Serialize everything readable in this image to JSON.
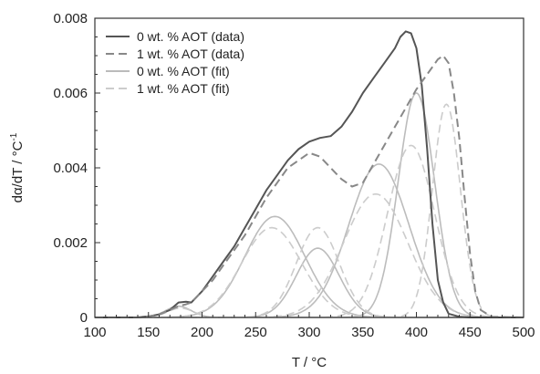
{
  "chart_data": {
    "type": "line",
    "xlabel": "T / °C",
    "ylabel_main": "dα/dT / °C",
    "ylabel_sup": "-1",
    "xlim": [
      100,
      500
    ],
    "ylim": [
      0,
      0.008
    ],
    "x_ticks": [
      100,
      150,
      200,
      250,
      300,
      350,
      400,
      450,
      500
    ],
    "x_tick_labels": [
      "100",
      "150",
      "200",
      "250",
      "300",
      "350",
      "400",
      "450",
      "500"
    ],
    "y_ticks": [
      0,
      0.002,
      0.004,
      0.006,
      0.008
    ],
    "y_tick_labels": [
      "0",
      "0.002",
      "0.004",
      "0.006",
      "0.008"
    ],
    "grid": false,
    "legend_position": "top-left",
    "legend": [
      {
        "label": "0 wt. % AOT (data)",
        "color": "#555555",
        "dash": "solid"
      },
      {
        "label": "1 wt. % AOT (data)",
        "color": "#888888",
        "dash": "dashed"
      },
      {
        "label": "0 wt. % AOT (fit)",
        "color": "#bbbbbb",
        "dash": "solid"
      },
      {
        "label": "1 wt. % AOT (fit)",
        "color": "#cccccc",
        "dash": "dashed"
      }
    ],
    "series": [
      {
        "name": "0 wt. % AOT (data)",
        "color": "#555555",
        "dash": "solid",
        "width": 2,
        "x": [
          100,
          140,
          150,
          160,
          170,
          178,
          185,
          190,
          200,
          210,
          220,
          230,
          240,
          250,
          260,
          270,
          280,
          290,
          300,
          310,
          320,
          330,
          340,
          350,
          360,
          370,
          380,
          385,
          390,
          395,
          400,
          405,
          410,
          415,
          420,
          425,
          430,
          440,
          450,
          500
        ],
        "y": [
          0,
          0,
          3e-05,
          8e-05,
          0.0002,
          0.0004,
          0.00042,
          0.0004,
          0.0007,
          0.0011,
          0.0015,
          0.0019,
          0.0024,
          0.0029,
          0.0034,
          0.0038,
          0.0042,
          0.0045,
          0.0047,
          0.0048,
          0.00485,
          0.0051,
          0.0055,
          0.006,
          0.0064,
          0.0068,
          0.0072,
          0.0075,
          0.00765,
          0.0076,
          0.0072,
          0.0062,
          0.0045,
          0.0025,
          0.001,
          0.0004,
          0.0001,
          2e-05,
          0,
          0
        ]
      },
      {
        "name": "1 wt. % AOT (data)",
        "color": "#888888",
        "dash": "dashed",
        "width": 2,
        "x": [
          100,
          140,
          150,
          160,
          170,
          178,
          185,
          190,
          200,
          210,
          220,
          230,
          240,
          250,
          260,
          270,
          280,
          290,
          300,
          310,
          320,
          330,
          340,
          350,
          360,
          370,
          380,
          390,
          400,
          410,
          420,
          425,
          430,
          435,
          440,
          445,
          450,
          455,
          460,
          470,
          500
        ],
        "y": [
          0,
          0,
          3e-05,
          8e-05,
          0.0002,
          0.0003,
          0.00035,
          0.0004,
          0.0007,
          0.001,
          0.0014,
          0.0018,
          0.0022,
          0.0027,
          0.0032,
          0.0036,
          0.004,
          0.0042,
          0.0044,
          0.0043,
          0.004,
          0.0037,
          0.0035,
          0.0036,
          0.0041,
          0.0046,
          0.0051,
          0.0056,
          0.0061,
          0.0065,
          0.0069,
          0.007,
          0.0068,
          0.006,
          0.0048,
          0.0032,
          0.0017,
          0.0007,
          0.0002,
          2e-05,
          0
        ]
      }
    ],
    "fit_peaks": {
      "zero_wt": {
        "color": "#bcbcbc",
        "dash": "solid",
        "peaks": [
          {
            "center": 178,
            "height": 0.0003,
            "sigma": 12
          },
          {
            "center": 268,
            "height": 0.0027,
            "sigma": 28
          },
          {
            "center": 308,
            "height": 0.00185,
            "sigma": 20
          },
          {
            "center": 365,
            "height": 0.0041,
            "sigma": 28
          },
          {
            "center": 400,
            "height": 0.006,
            "sigma": 17
          }
        ]
      },
      "one_wt": {
        "color": "#cccccc",
        "dash": "dashed",
        "peaks": [
          {
            "center": 180,
            "height": 0.00025,
            "sigma": 12
          },
          {
            "center": 265,
            "height": 0.0024,
            "sigma": 28
          },
          {
            "center": 308,
            "height": 0.0024,
            "sigma": 20
          },
          {
            "center": 362,
            "height": 0.0033,
            "sigma": 30
          },
          {
            "center": 395,
            "height": 0.0046,
            "sigma": 22
          },
          {
            "center": 428,
            "height": 0.0057,
            "sigma": 13
          }
        ]
      }
    }
  }
}
